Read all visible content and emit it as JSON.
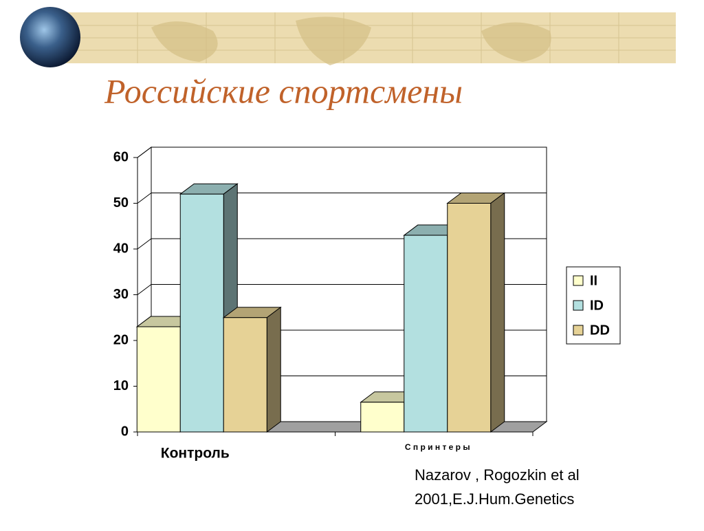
{
  "title": "Российские спортсмены",
  "chart_data": {
    "type": "bar3d",
    "categories": [
      "Контроль",
      "С п р и н т е р ы"
    ],
    "series": [
      {
        "name": "II",
        "color": "#ffffcc",
        "values": [
          23,
          6.5
        ]
      },
      {
        "name": "ID",
        "color": "#b3e0e0",
        "values": [
          52,
          43
        ]
      },
      {
        "name": "DD",
        "color": "#e6d296",
        "values": [
          25,
          50
        ]
      }
    ],
    "ylim": [
      0,
      60
    ],
    "yticks": [
      0,
      10,
      20,
      30,
      40,
      50,
      60
    ],
    "grid": true,
    "legend": "right"
  },
  "citation": [
    "Nazarov , Rogozkin et al",
    "2001,E.J.Hum.Genetics"
  ]
}
